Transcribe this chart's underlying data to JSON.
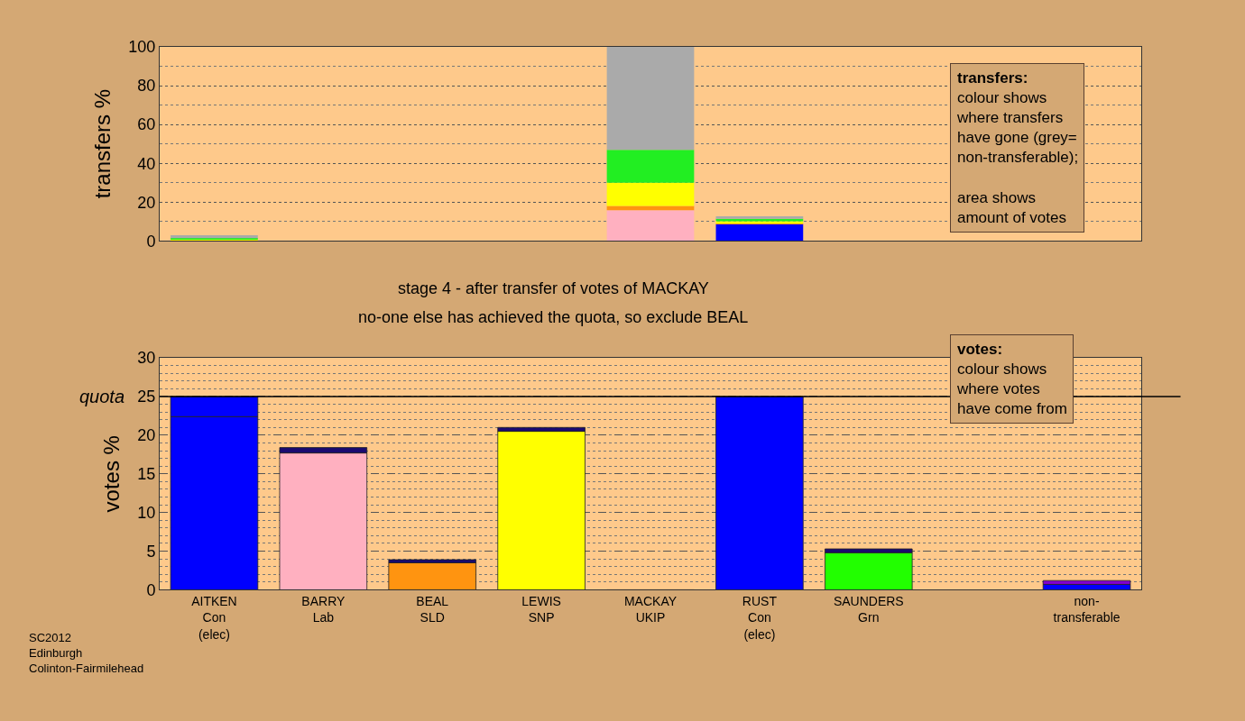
{
  "chart_data": [
    {
      "type": "bar",
      "stacked": true,
      "ylabel": "transfers %",
      "tick_labels": "y",
      "grid": "y",
      "categories": [
        null,
        null,
        null,
        null,
        null,
        null,
        null,
        null,
        null
      ],
      "ylim": [
        0,
        100
      ],
      "yticks": [
        0,
        20,
        40,
        60,
        80,
        100
      ],
      "series": [
        {
          "color": "#0000ff",
          "values": [
            null,
            null,
            null,
            null,
            null,
            8.6,
            null,
            null,
            null
          ]
        },
        {
          "color": "#ffb0c0",
          "values": [
            null,
            null,
            null,
            null,
            15.8,
            null,
            null,
            null,
            null
          ]
        },
        {
          "color": "#ff9410",
          "values": [
            null,
            null,
            null,
            null,
            2.2,
            0.4,
            null,
            null,
            null
          ]
        },
        {
          "color": "#ffff00",
          "values": [
            1.0,
            null,
            null,
            null,
            12.0,
            1.2,
            null,
            null,
            null
          ]
        },
        {
          "color": "#22ee22",
          "values": [
            0.5,
            null,
            null,
            null,
            16.9,
            1.3,
            null,
            null,
            null
          ]
        },
        {
          "color": "#aaaaaa",
          "values": [
            1.5,
            null,
            null,
            null,
            53.1,
            1.2,
            null,
            null,
            null
          ]
        }
      ],
      "annotations": [
        "transfers:\ncolour shows\nwhere transfers\nhave gone (grey=\nnon-transferable);\n\narea shows\namount of votes"
      ]
    },
    {
      "type": "bar",
      "stacked": true,
      "title": "stage 4 - after transfer of votes of MACKAY",
      "subtitle": "no-one else has achieved the quota, so exclude BEAL",
      "ylabel": "votes %",
      "grid": "y",
      "categories": [
        "AITKEN\nCon\n(elec)",
        "BARRY\nLab",
        "BEAL\nSLD",
        "LEWIS\nSNP",
        "MACKAY\nUKIP",
        "RUST\nCon\n(elec)",
        "SAUNDERS\nGrn",
        null,
        "non-\ntransferable"
      ],
      "ylim": [
        0,
        30
      ],
      "yticks": [
        0,
        5,
        10,
        15,
        20,
        25,
        30
      ],
      "series": [
        {
          "colors": [
            "#0000ff",
            "#ffb0c0",
            "#ff9410",
            "#ffff00",
            "#222222",
            "#0000ff",
            "#22ff00",
            "#0000ff",
            "#0000ff"
          ],
          "values": [
            22.4,
            17.7,
            3.5,
            20.5,
            0,
            25,
            4.8,
            null,
            0.7
          ]
        },
        {
          "colors": [
            "#0000ff",
            "#1a0a70",
            "#1a0a70",
            "#1a0a70",
            "#1a0a70",
            "#1a0a70",
            "#1a0a70",
            "#1a0a70",
            "#8000d0"
          ],
          "values": [
            2.6,
            0.7,
            0.4,
            0.5,
            null,
            null,
            0.5,
            null,
            0.5
          ]
        }
      ],
      "ref_lines": [
        {
          "axis": "y",
          "value": 25,
          "label": "quota",
          "color": "#000000"
        }
      ],
      "annotations": [
        "votes:\ncolour shows\nwhere votes\nhave come from",
        "SC2012\nEdinburgh\nColinton-Fairmilehead"
      ]
    }
  ]
}
